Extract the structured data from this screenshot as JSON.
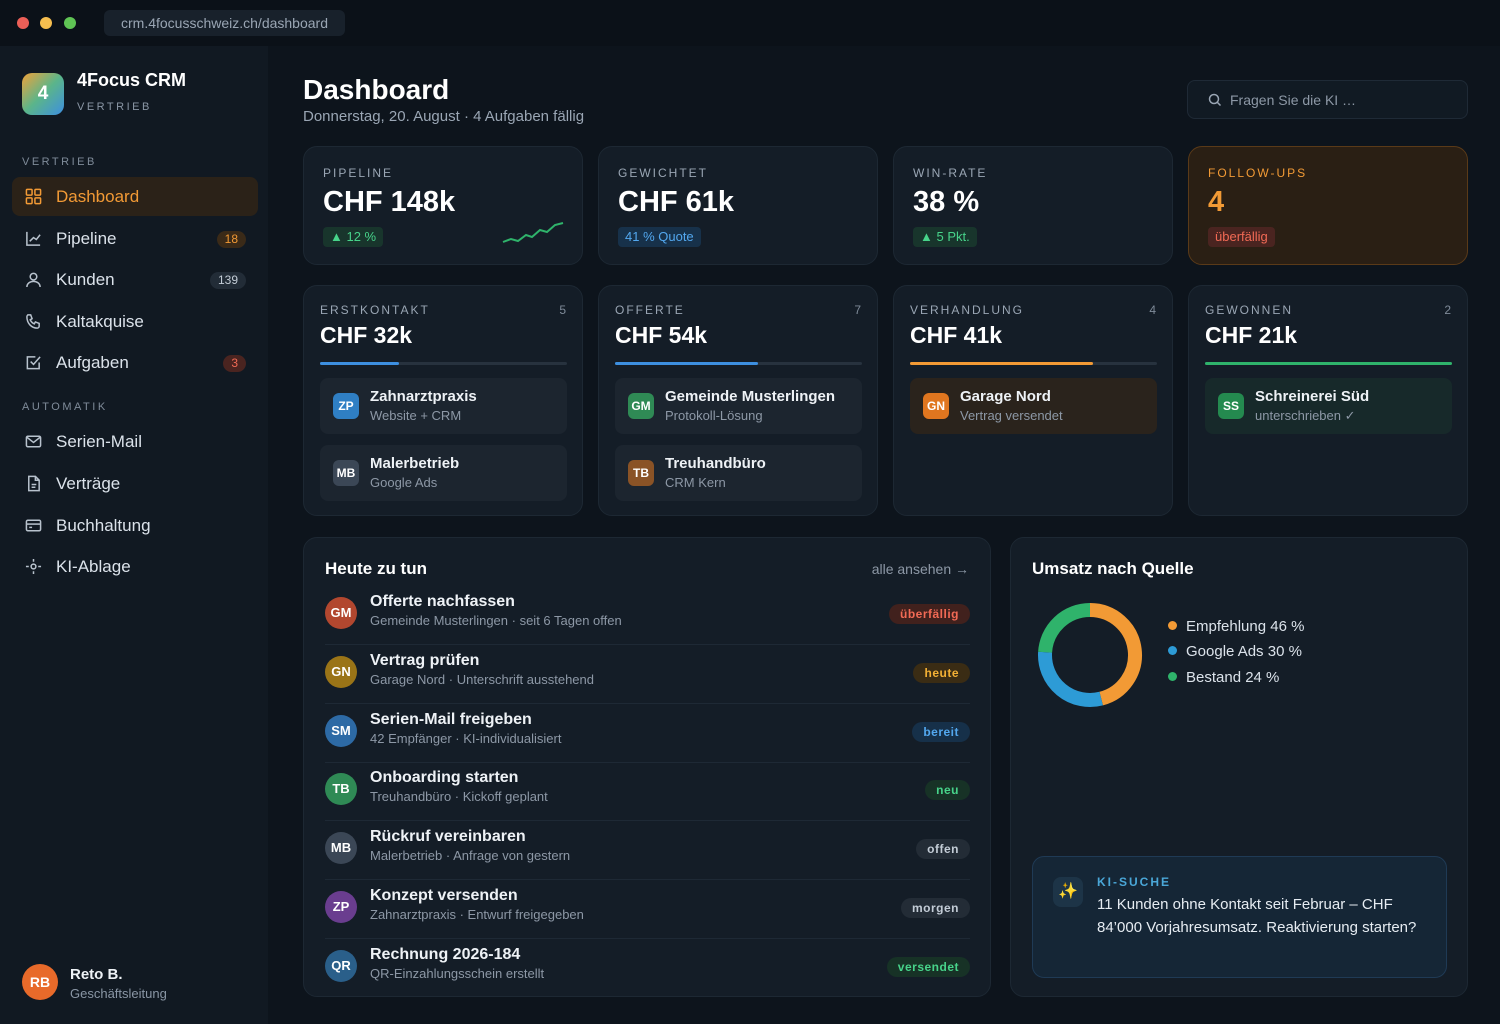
{
  "window": {
    "url": "crm.4focusschweiz.ch/dashboard",
    "colors": {
      "close": "#ec5f57",
      "minimize": "#f5be4f",
      "maximize": "#5fc454"
    }
  },
  "brand": {
    "logo_letter": "4",
    "name": "4Focus CRM",
    "subtitle": "VERTRIEB"
  },
  "sidebar": {
    "sections": [
      "VERTRIEB",
      "AUTOMATIK"
    ],
    "items": [
      {
        "label": "Dashboard",
        "icon": "grid-icon",
        "badge": ""
      },
      {
        "label": "Pipeline",
        "icon": "chart-line-icon",
        "badge": "18"
      },
      {
        "label": "Kunden",
        "icon": "user-icon",
        "badge": "139"
      },
      {
        "label": "Kaltakquise",
        "icon": "phone-icon",
        "badge": ""
      },
      {
        "label": "Aufgaben",
        "icon": "checkbox-icon",
        "badge": "3"
      },
      {
        "label": "Serien-Mail",
        "icon": "mail-icon",
        "badge": ""
      },
      {
        "label": "Verträge",
        "icon": "document-icon",
        "badge": ""
      },
      {
        "label": "Buchhaltung",
        "icon": "wallet-icon",
        "badge": ""
      },
      {
        "label": "KI-Ablage",
        "icon": "sparkle-icon",
        "badge": ""
      }
    ],
    "user": {
      "initials": "RB",
      "name": "Reto B.",
      "role": "Geschäftsleitung"
    }
  },
  "header": {
    "title": "Dashboard",
    "subtitle": "Donnerstag, 20. August · 4 Aufgaben fällig",
    "search_placeholder": "Fragen Sie die KI …"
  },
  "kpis": [
    {
      "label": "PIPELINE",
      "value": "CHF 148k",
      "chip": "▲ 12 %"
    },
    {
      "label": "GEWICHTET",
      "value": "CHF 61k",
      "chip": "41 % Quote"
    },
    {
      "label": "WIN-RATE",
      "value": "38 %",
      "chip": "▲ 5 Pkt."
    },
    {
      "label": "FOLLOW-UPS",
      "value": "4",
      "chip": "überfällig"
    }
  ],
  "stages": [
    {
      "label": "ERSTKONTAKT",
      "count": "5",
      "value": "CHF 32k",
      "progress": 0.32,
      "color": "#3d8fe0",
      "deals": [
        {
          "initials": "ZP",
          "name": "Zahnarztpraxis",
          "sub": "Website + CRM",
          "color": "#2f7fc4"
        },
        {
          "initials": "MB",
          "name": "Malerbetrieb",
          "sub": "Google Ads",
          "color": "#3b4756"
        }
      ]
    },
    {
      "label": "OFFERTE",
      "count": "7",
      "value": "CHF 54k",
      "progress": 0.58,
      "color": "#3d8fe0",
      "deals": [
        {
          "initials": "GM",
          "name": "Gemeinde Musterlingen",
          "sub": "Protokoll-Lösung",
          "color": "#2f8a55"
        },
        {
          "initials": "TB",
          "name": "Treuhandbüro",
          "sub": "CRM Kern",
          "color": "#8a5326"
        }
      ]
    },
    {
      "label": "VERHANDLUNG",
      "count": "4",
      "value": "CHF 41k",
      "progress": 0.74,
      "color": "#f29a35",
      "deals": [
        {
          "initials": "GN",
          "name": "Garage Nord",
          "sub": "Vertrag versendet",
          "color": "#e0761f"
        }
      ]
    },
    {
      "label": "GEWONNEN",
      "count": "2",
      "value": "CHF 21k",
      "progress": 1.0,
      "color": "#2fb36b",
      "deals": [
        {
          "initials": "SS",
          "name": "Schreinerei Süd",
          "sub": "unterschrieben ✓",
          "color": "#248a4f"
        }
      ]
    }
  ],
  "tasks": {
    "title": "Heute zu tun",
    "link": "alle ansehen →",
    "items": [
      {
        "initials": "GM",
        "title": "Offerte nachfassen",
        "sub": "Gemeinde Musterlingen · seit 6 Tagen offen",
        "status": "überfällig",
        "av": "#b2472f",
        "pill_bg": "#41211d",
        "pill_fg": "#f26a55"
      },
      {
        "initials": "GN",
        "title": "Vertrag prüfen",
        "sub": "Garage Nord · Unterschrift ausstehend",
        "status": "heute",
        "av": "#9a7417",
        "pill_bg": "#3a2c14",
        "pill_fg": "#f2b035"
      },
      {
        "initials": "SM",
        "title": "Serien-Mail freigeben",
        "sub": "42 Empfänger · KI-individualisiert",
        "status": "bereit",
        "av": "#2d6aa5",
        "pill_bg": "#163049",
        "pill_fg": "#53a8ef"
      },
      {
        "initials": "TB",
        "title": "Onboarding starten",
        "sub": "Treuhandbüro · Kickoff geplant",
        "status": "neu",
        "av": "#2f8a55",
        "pill_bg": "#173226",
        "pill_fg": "#47d38a"
      },
      {
        "initials": "MB",
        "title": "Rückruf vereinbaren",
        "sub": "Malerbetrieb · Anfrage von gestern",
        "status": "offen",
        "av": "#3b4756",
        "pill_bg": "#232c36",
        "pill_fg": "#c3ccd6"
      },
      {
        "initials": "ZP",
        "title": "Konzept versenden",
        "sub": "Zahnarztpraxis · Entwurf freigegeben",
        "status": "morgen",
        "av": "#6a3d8f",
        "pill_bg": "#232c36",
        "pill_fg": "#c3ccd6"
      },
      {
        "initials": "QR",
        "title": "Rechnung 2026-184",
        "sub": "QR-Einzahlungsschein erstellt",
        "status": "versendet",
        "av": "#2a5f8a",
        "pill_bg": "#173226",
        "pill_fg": "#47d38a"
      }
    ]
  },
  "revenue": {
    "title": "Umsatz nach Quelle",
    "legend": [
      "Empfehlung 46 %",
      "Google Ads 30 %",
      "Bestand 24 %"
    ],
    "chart_data": {
      "type": "pie",
      "categories": [
        "Empfehlung",
        "Google Ads",
        "Bestand"
      ],
      "values": [
        46,
        30,
        24
      ],
      "colors": [
        "#f29a35",
        "#2d9bd6",
        "#2fb36b"
      ]
    }
  },
  "ai": {
    "label": "KI-SUCHE",
    "text": "11 Kunden ohne Kontakt seit Februar – CHF 84’000 Vorjahresumsatz. Reaktivierung starten?"
  }
}
